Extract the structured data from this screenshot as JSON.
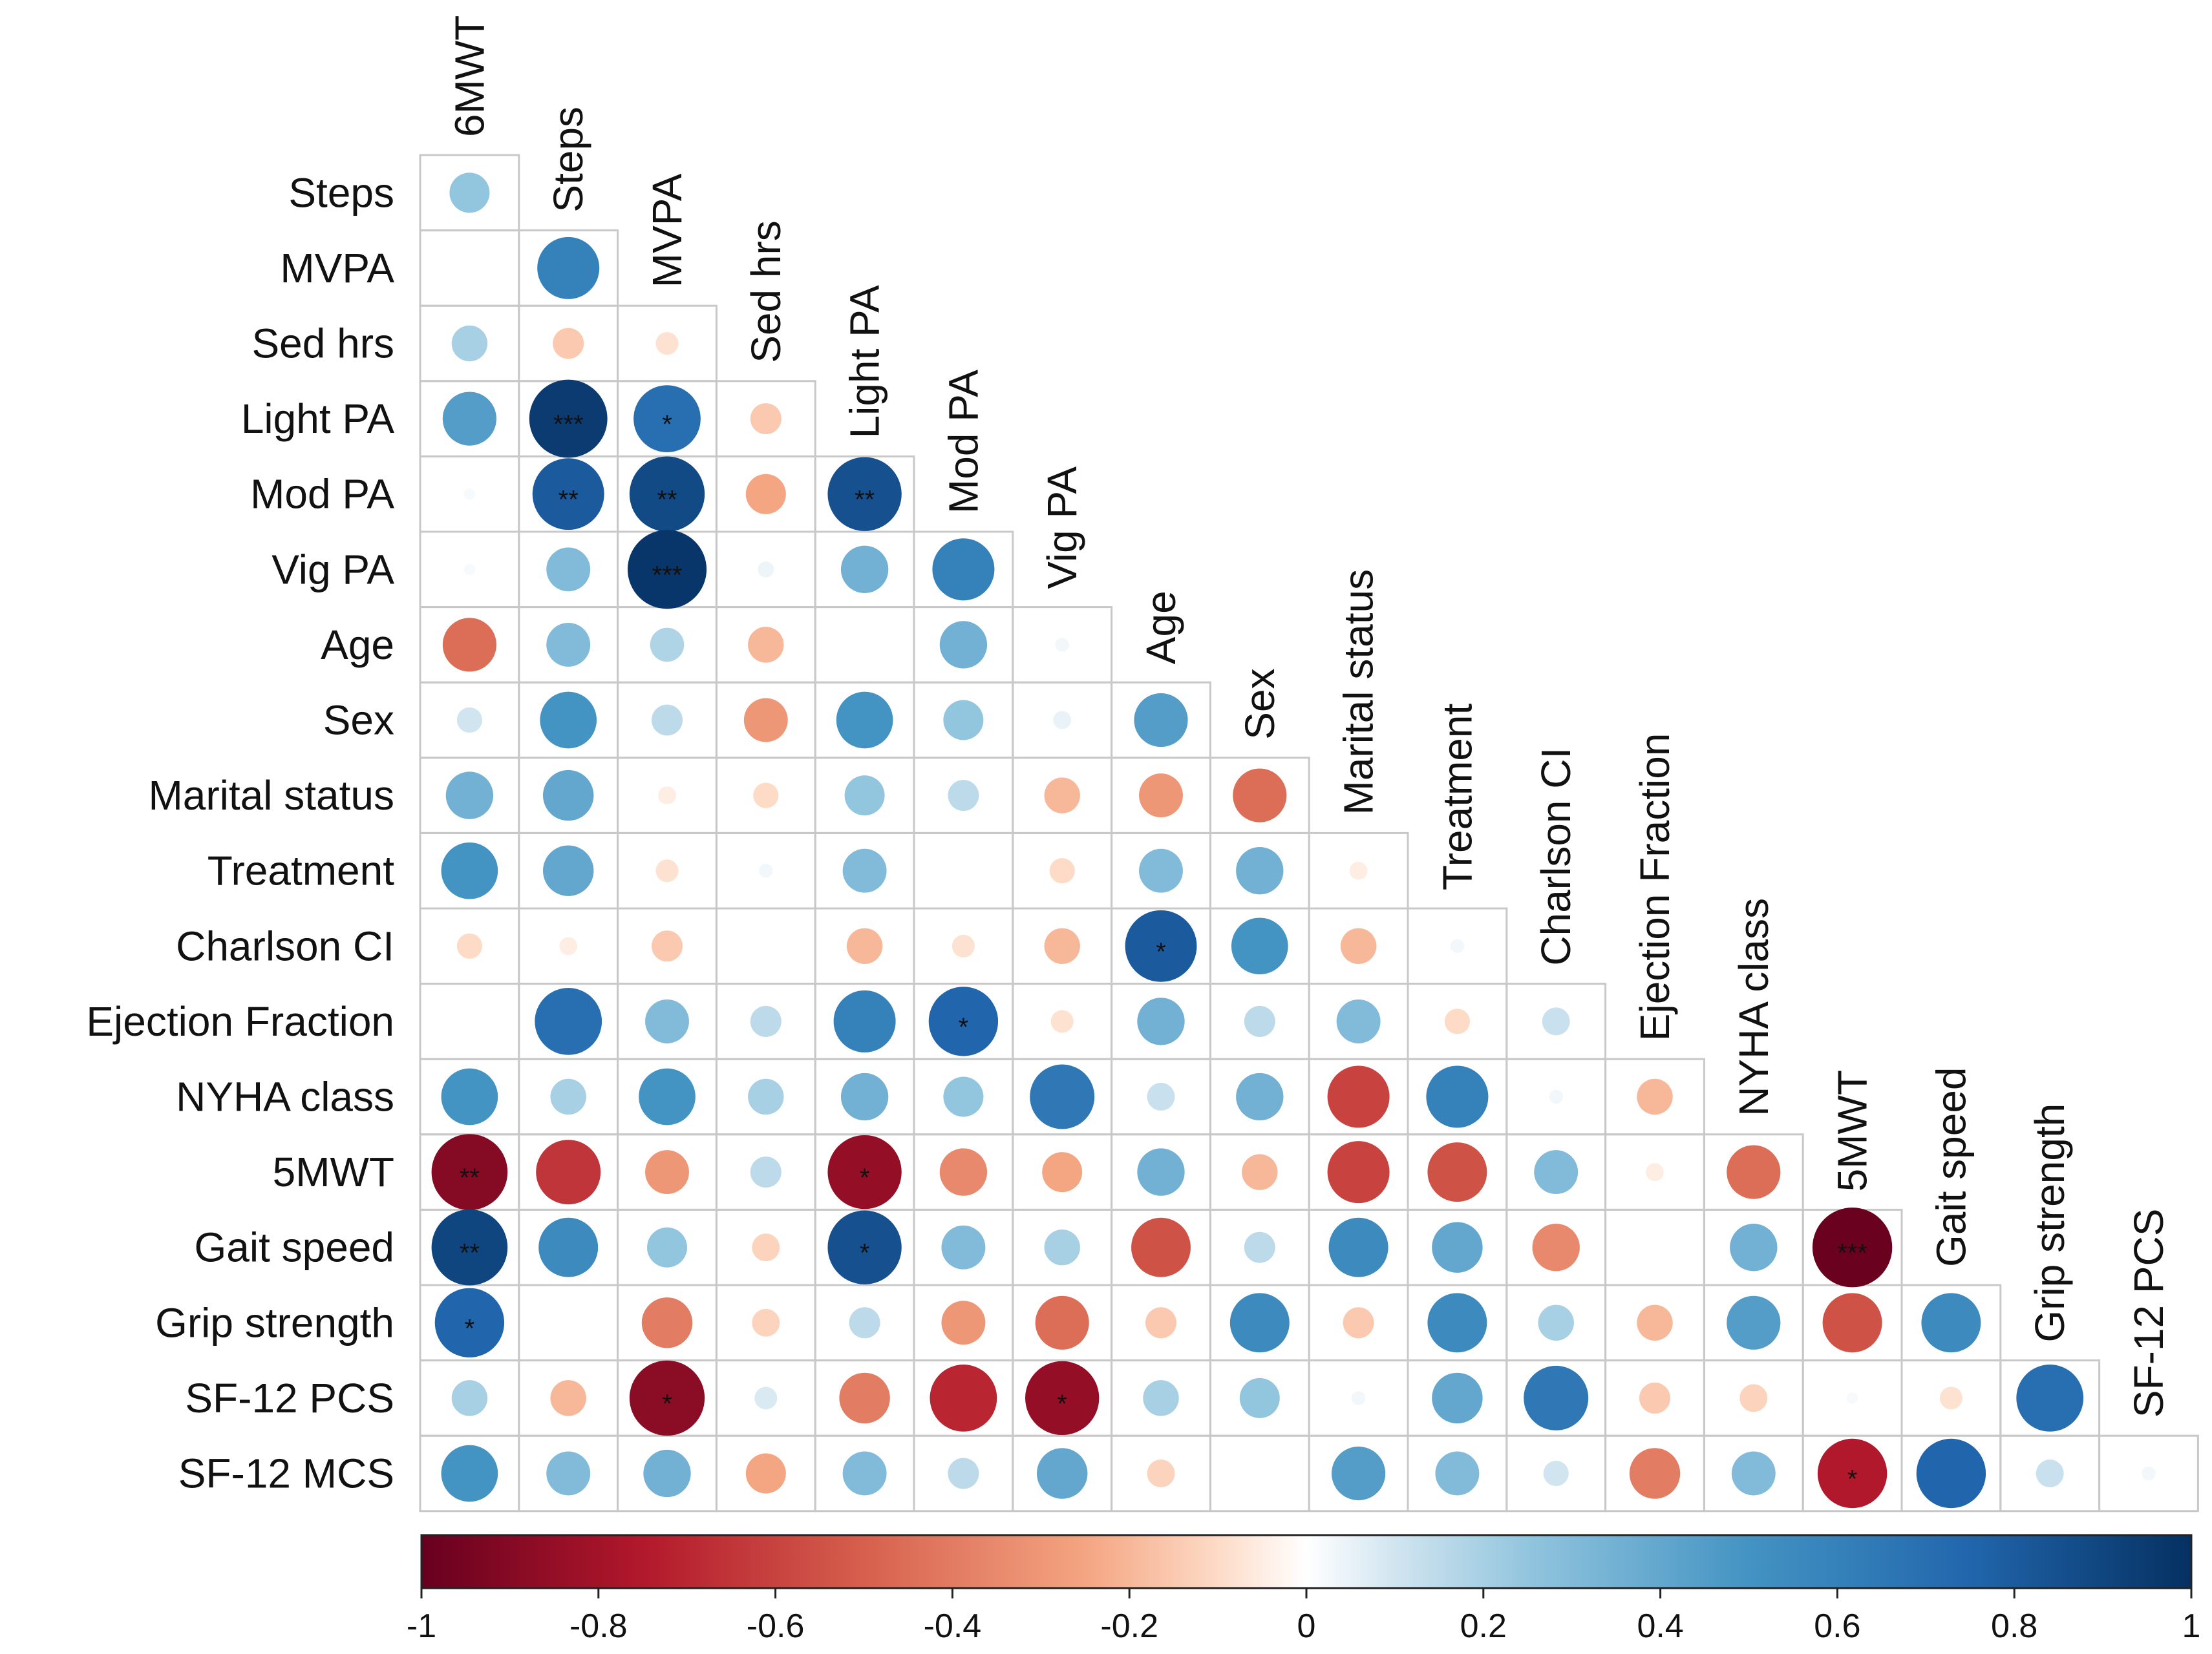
{
  "chart_data": {
    "type": "heatmap",
    "title": "",
    "subtitle": "",
    "style": "circle correlation matrix (lower triangle)",
    "variables": [
      "6MWT",
      "Steps",
      "MVPA",
      "Sed hrs",
      "Light PA",
      "Mod PA",
      "Vig PA",
      "Age",
      "Sex",
      "Marital status",
      "Treatment",
      "Charlson CI",
      "Ejection Fraction",
      "NYHA class",
      "5MWT",
      "Gait speed",
      "Grip strength",
      "SF-12 PCS",
      "SF-12 MCS"
    ],
    "row_labels": [
      "Steps",
      "MVPA",
      "Sed hrs",
      "Light PA",
      "Mod PA",
      "Vig PA",
      "Age",
      "Sex",
      "Marital status",
      "Treatment",
      "Charlson CI",
      "Ejection Fraction",
      "NYHA class",
      "5MWT",
      "Gait speed",
      "Grip strength",
      "SF-12 PCS",
      "SF-12 MCS"
    ],
    "col_labels": [
      "6MWT",
      "Steps",
      "MVPA",
      "Sed hrs",
      "Light PA",
      "Mod PA",
      "Vig PA",
      "Age",
      "Sex",
      "Marital status",
      "Treatment",
      "Charlson CI",
      "Ejection Fraction",
      "NYHA class",
      "5MWT",
      "Gait speed",
      "Grip strength",
      "SF-12 PCS"
    ],
    "correlations": [
      [
        0.25
      ],
      [
        0.0,
        0.6
      ],
      [
        0.2,
        -0.15,
        -0.08
      ],
      [
        0.45,
        0.95,
        0.7,
        -0.15
      ],
      [
        0.02,
        0.8,
        0.88,
        -0.25,
        0.85
      ],
      [
        0.02,
        0.3,
        0.97,
        0.04,
        0.35,
        0.6
      ],
      [
        -0.45,
        0.3,
        0.18,
        -0.2,
        0.0,
        0.35,
        0.03
      ],
      [
        0.1,
        0.5,
        0.15,
        -0.3,
        0.5,
        0.25,
        0.05,
        0.45
      ],
      [
        0.35,
        0.4,
        -0.05,
        -0.1,
        0.25,
        0.15,
        -0.2,
        -0.3,
        -0.45
      ],
      [
        0.5,
        0.4,
        -0.08,
        0.03,
        0.3,
        0.0,
        -0.1,
        0.3,
        0.35,
        -0.05
      ],
      [
        -0.1,
        -0.05,
        -0.15,
        0.0,
        -0.2,
        -0.08,
        -0.2,
        0.8,
        0.5,
        -0.2,
        0.03
      ],
      [
        0.0,
        0.7,
        0.3,
        0.15,
        0.6,
        0.75,
        -0.08,
        0.35,
        0.15,
        0.3,
        -0.1,
        0.12
      ],
      [
        0.5,
        0.2,
        0.5,
        0.2,
        0.35,
        0.25,
        0.65,
        0.12,
        0.35,
        -0.6,
        0.6,
        0.03,
        -0.2
      ],
      [
        -0.9,
        -0.65,
        -0.3,
        0.15,
        -0.85,
        -0.35,
        -0.25,
        0.35,
        -0.2,
        -0.6,
        -0.55,
        0.3,
        -0.05,
        -0.45
      ],
      [
        0.9,
        0.55,
        0.25,
        -0.12,
        0.85,
        0.3,
        0.2,
        -0.55,
        0.15,
        0.55,
        0.4,
        -0.35,
        0.0,
        0.35,
        -0.99
      ],
      [
        0.75,
        0.0,
        -0.4,
        -0.12,
        0.15,
        -0.3,
        -0.45,
        -0.15,
        0.55,
        -0.15,
        0.55,
        0.2,
        -0.2,
        0.45,
        -0.55,
        0.55
      ],
      [
        0.2,
        -0.2,
        -0.88,
        0.08,
        -0.4,
        -0.7,
        -0.85,
        0.2,
        0.25,
        0.03,
        0.4,
        0.65,
        -0.15,
        -0.12,
        0.02,
        -0.08,
        0.7
      ],
      [
        0.5,
        0.3,
        0.35,
        -0.25,
        0.3,
        0.15,
        0.4,
        -0.12,
        0.0,
        0.45,
        0.3,
        0.1,
        -0.4,
        0.3,
        -0.75,
        0.75,
        0.12,
        0.03
      ]
    ],
    "significance": [
      [
        ""
      ],
      [
        "",
        ""
      ],
      [
        "",
        "",
        ""
      ],
      [
        "",
        "***",
        "*",
        ""
      ],
      [
        "",
        "**",
        "**",
        "",
        "**"
      ],
      [
        "",
        "",
        "***",
        "",
        "",
        ""
      ],
      [
        "",
        "",
        "",
        "",
        "",
        "",
        ""
      ],
      [
        "",
        "",
        "",
        "",
        "",
        "",
        "",
        ""
      ],
      [
        "",
        "",
        "",
        "",
        "",
        "",
        "",
        "",
        ""
      ],
      [
        "",
        "",
        "",
        "",
        "",
        "",
        "",
        "",
        "",
        ""
      ],
      [
        "",
        "",
        "",
        "",
        "",
        "",
        "",
        "*",
        "",
        "",
        ""
      ],
      [
        "",
        "",
        "",
        "",
        "",
        "*",
        "",
        "",
        "",
        "",
        "",
        ""
      ],
      [
        "",
        "",
        "",
        "",
        "",
        "",
        "",
        "",
        "",
        "",
        "",
        "",
        ""
      ],
      [
        "**",
        "",
        "",
        "",
        "*",
        "",
        "",
        "",
        "",
        "",
        "",
        "",
        "",
        ""
      ],
      [
        "**",
        "",
        "",
        "",
        "*",
        "",
        "",
        "",
        "",
        "",
        "",
        "",
        "",
        "",
        "***"
      ],
      [
        "*",
        "",
        "",
        "",
        "",
        "",
        "",
        "",
        "",
        "",
        "",
        "",
        "",
        "",
        "",
        ""
      ],
      [
        "",
        "",
        "*",
        "",
        "",
        "",
        "*",
        "",
        "",
        "",
        "",
        "",
        "",
        "",
        "",
        "",
        ""
      ],
      [
        "",
        "",
        "",
        "",
        "",
        "",
        "",
        "",
        "",
        "",
        "",
        "",
        "",
        "",
        "*",
        "",
        "",
        ""
      ]
    ],
    "colorbar": {
      "range": [
        -1,
        1
      ],
      "ticks": [
        -1,
        -0.8,
        -0.6,
        -0.4,
        -0.2,
        0,
        0.2,
        0.4,
        0.6,
        0.8,
        1
      ],
      "tick_labels": [
        "-1",
        "-0.8",
        "-0.6",
        "-0.4",
        "-0.2",
        "0",
        "0.2",
        "0.4",
        "0.6",
        "0.8",
        "1"
      ],
      "stops": [
        {
          "value": -1.0,
          "color": "#67001f"
        },
        {
          "value": -0.75,
          "color": "#b2182b"
        },
        {
          "value": -0.5,
          "color": "#d6604d"
        },
        {
          "value": -0.25,
          "color": "#f4a582"
        },
        {
          "value": -0.1,
          "color": "#fddbc7"
        },
        {
          "value": 0.0,
          "color": "#ffffff"
        },
        {
          "value": 0.1,
          "color": "#d1e5f0"
        },
        {
          "value": 0.25,
          "color": "#92c5de"
        },
        {
          "value": 0.5,
          "color": "#4393c3"
        },
        {
          "value": 0.75,
          "color": "#2166ac"
        },
        {
          "value": 1.0,
          "color": "#053061"
        }
      ]
    },
    "grid_color": "#c8c8c8"
  }
}
